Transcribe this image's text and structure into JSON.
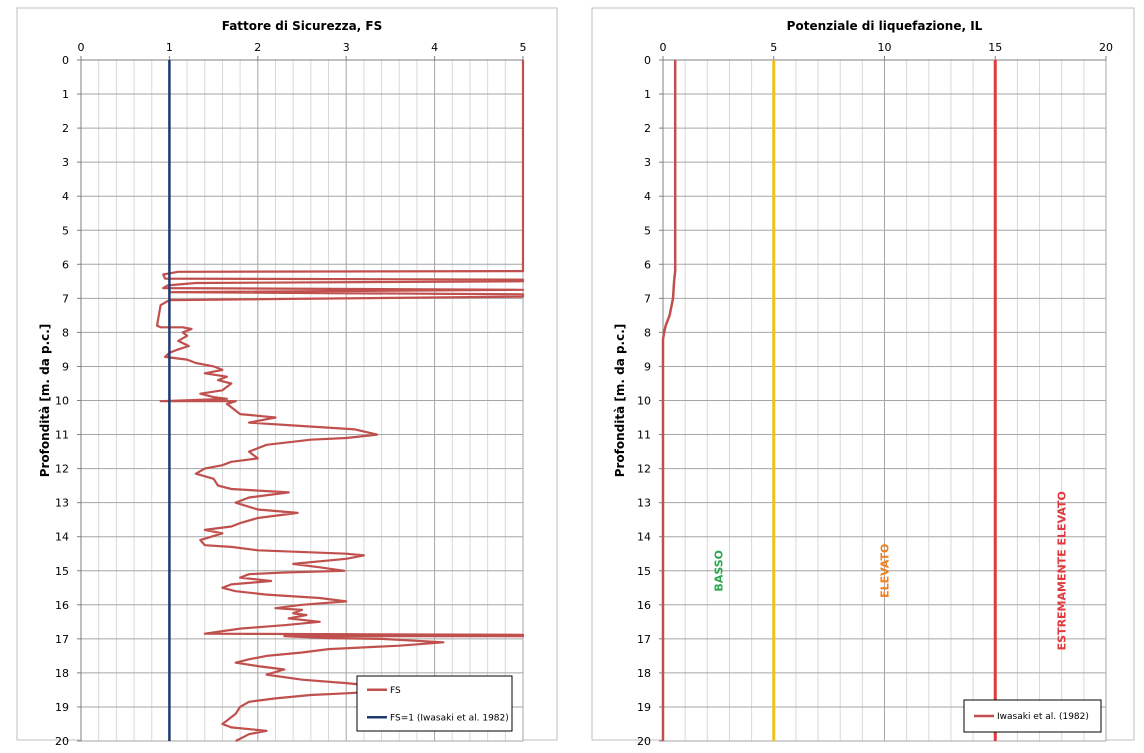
{
  "chart_data": [
    {
      "type": "line",
      "title": "Fattore di Sicurezza, FS",
      "xlabel": "",
      "ylabel": "Profondità [m. da p.c.]",
      "xlim": [
        0,
        5
      ],
      "ylim": [
        0,
        20
      ],
      "y_inverted": true,
      "x_axis_position": "top",
      "grid": true,
      "minor_grid": true,
      "x_ticks": [
        "0",
        "1",
        "2",
        "3",
        "4",
        "5"
      ],
      "y_ticks": [
        "0",
        "1",
        "2",
        "3",
        "4",
        "5",
        "6",
        "7",
        "8",
        "9",
        "10",
        "11",
        "12",
        "13",
        "14",
        "15",
        "16",
        "17",
        "18",
        "19",
        "20"
      ],
      "legend_position": "bottom-right",
      "series": [
        {
          "name": "FS",
          "color": "#c0504d",
          "points": [
            [
              5.0,
              0.0
            ],
            [
              5.0,
              6.2
            ],
            [
              1.1,
              6.22
            ],
            [
              0.93,
              6.3
            ],
            [
              0.95,
              6.42
            ],
            [
              5.0,
              6.45
            ],
            [
              5.0,
              6.5
            ],
            [
              1.3,
              6.55
            ],
            [
              0.98,
              6.62
            ],
            [
              0.93,
              6.7
            ],
            [
              5.0,
              6.75
            ],
            [
              1.0,
              6.82
            ],
            [
              5.0,
              6.88
            ],
            [
              5.0,
              6.95
            ],
            [
              1.0,
              7.05
            ],
            [
              0.9,
              7.2
            ],
            [
              0.88,
              7.5
            ],
            [
              0.86,
              7.8
            ],
            [
              0.9,
              7.85
            ],
            [
              1.15,
              7.85
            ],
            [
              1.25,
              7.9
            ],
            [
              1.15,
              8.0
            ],
            [
              1.2,
              8.1
            ],
            [
              1.1,
              8.25
            ],
            [
              1.22,
              8.4
            ],
            [
              1.1,
              8.5
            ],
            [
              1.0,
              8.6
            ],
            [
              0.95,
              8.72
            ],
            [
              1.2,
              8.8
            ],
            [
              1.3,
              8.9
            ],
            [
              1.5,
              9.0
            ],
            [
              1.6,
              9.1
            ],
            [
              1.4,
              9.2
            ],
            [
              1.65,
              9.3
            ],
            [
              1.55,
              9.4
            ],
            [
              1.7,
              9.5
            ],
            [
              1.6,
              9.7
            ],
            [
              1.35,
              9.8
            ],
            [
              1.5,
              9.9
            ],
            [
              1.65,
              9.95
            ],
            [
              0.9,
              10.02
            ],
            [
              1.75,
              10.02
            ],
            [
              1.65,
              10.1
            ],
            [
              1.7,
              10.2
            ],
            [
              1.8,
              10.4
            ],
            [
              2.2,
              10.5
            ],
            [
              1.9,
              10.65
            ],
            [
              2.5,
              10.75
            ],
            [
              3.1,
              10.85
            ],
            [
              3.35,
              11.0
            ],
            [
              3.0,
              11.1
            ],
            [
              2.6,
              11.15
            ],
            [
              2.1,
              11.3
            ],
            [
              1.9,
              11.5
            ],
            [
              2.0,
              11.7
            ],
            [
              1.7,
              11.8
            ],
            [
              1.6,
              11.9
            ],
            [
              1.4,
              12.0
            ],
            [
              1.3,
              12.15
            ],
            [
              1.5,
              12.3
            ],
            [
              1.55,
              12.5
            ],
            [
              1.7,
              12.6
            ],
            [
              2.35,
              12.7
            ],
            [
              1.9,
              12.85
            ],
            [
              1.75,
              13.0
            ],
            [
              2.0,
              13.2
            ],
            [
              2.45,
              13.3
            ],
            [
              2.0,
              13.45
            ],
            [
              1.8,
              13.6
            ],
            [
              1.7,
              13.7
            ],
            [
              1.4,
              13.8
            ],
            [
              1.6,
              13.9
            ],
            [
              1.35,
              14.1
            ],
            [
              1.4,
              14.25
            ],
            [
              1.7,
              14.3
            ],
            [
              2.0,
              14.4
            ],
            [
              3.0,
              14.5
            ],
            [
              3.2,
              14.55
            ],
            [
              3.0,
              14.65
            ],
            [
              2.4,
              14.8
            ],
            [
              2.7,
              14.9
            ],
            [
              2.98,
              15.0
            ],
            [
              2.3,
              15.05
            ],
            [
              1.9,
              15.1
            ],
            [
              1.8,
              15.2
            ],
            [
              2.15,
              15.3
            ],
            [
              1.7,
              15.4
            ],
            [
              1.6,
              15.5
            ],
            [
              1.75,
              15.6
            ],
            [
              2.1,
              15.7
            ],
            [
              2.7,
              15.8
            ],
            [
              3.0,
              15.9
            ],
            [
              2.5,
              16.0
            ],
            [
              2.2,
              16.1
            ],
            [
              2.5,
              16.15
            ],
            [
              2.4,
              16.25
            ],
            [
              2.55,
              16.3
            ],
            [
              2.35,
              16.4
            ],
            [
              2.7,
              16.5
            ],
            [
              2.3,
              16.6
            ],
            [
              1.8,
              16.7
            ],
            [
              1.4,
              16.85
            ],
            [
              5.0,
              16.88
            ],
            [
              5.0,
              16.92
            ],
            [
              2.3,
              16.92
            ],
            [
              2.8,
              16.98
            ],
            [
              3.4,
              17.0
            ],
            [
              4.1,
              17.1
            ],
            [
              3.6,
              17.2
            ],
            [
              2.8,
              17.3
            ],
            [
              2.5,
              17.4
            ],
            [
              2.1,
              17.5
            ],
            [
              1.9,
              17.6
            ],
            [
              1.75,
              17.7
            ],
            [
              2.0,
              17.8
            ],
            [
              2.3,
              17.9
            ],
            [
              2.1,
              18.05
            ],
            [
              2.5,
              18.2
            ],
            [
              3.0,
              18.3
            ],
            [
              3.4,
              18.4
            ],
            [
              3.7,
              18.5
            ],
            [
              3.0,
              18.6
            ],
            [
              2.6,
              18.65
            ],
            [
              2.2,
              18.75
            ],
            [
              1.9,
              18.85
            ],
            [
              1.8,
              19.0
            ],
            [
              1.75,
              19.2
            ],
            [
              1.65,
              19.4
            ],
            [
              1.6,
              19.5
            ],
            [
              1.7,
              19.6
            ],
            [
              2.1,
              19.7
            ],
            [
              1.9,
              19.8
            ],
            [
              1.75,
              20.0
            ]
          ]
        },
        {
          "name": "FS=1 (Iwasaki et al. 1982)",
          "color": "#1f3a6e",
          "points": [
            [
              1.0,
              0.0
            ],
            [
              1.0,
              20.0
            ]
          ]
        }
      ]
    },
    {
      "type": "line",
      "title": "Potenziale di liquefazione, IL",
      "xlabel": "",
      "ylabel": "Profondità [m. da p.c.]",
      "xlim": [
        0,
        20
      ],
      "ylim": [
        0,
        20
      ],
      "y_inverted": true,
      "x_axis_position": "top",
      "grid": true,
      "minor_grid": true,
      "x_ticks": [
        "0",
        "5",
        "10",
        "15",
        "20"
      ],
      "y_ticks": [
        "0",
        "1",
        "2",
        "3",
        "4",
        "5",
        "6",
        "7",
        "8",
        "9",
        "10",
        "11",
        "12",
        "13",
        "14",
        "15",
        "16",
        "17",
        "18",
        "19",
        "20"
      ],
      "legend_position": "bottom-right",
      "series": [
        {
          "name": "Iwasaki et al. (1982)",
          "color": "#c0504d",
          "points": [
            [
              0.55,
              0.0
            ],
            [
              0.55,
              6.2
            ],
            [
              0.5,
              6.5
            ],
            [
              0.45,
              7.0
            ],
            [
              0.3,
              7.5
            ],
            [
              0.12,
              7.8
            ],
            [
              0.05,
              8.0
            ],
            [
              0.0,
              8.2
            ],
            [
              0.0,
              20.0
            ]
          ]
        }
      ],
      "threshold_lines": [
        {
          "x": 5,
          "color": "#f0c020"
        },
        {
          "x": 15,
          "color": "#e0393e"
        }
      ],
      "zone_labels": [
        {
          "text": "BASSO",
          "x": 2.5,
          "y": 15.0,
          "color": "#2ea84f"
        },
        {
          "text": "ELEVATO",
          "x": 10.0,
          "y": 15.0,
          "color": "#f07f1e"
        },
        {
          "text": "ESTREMAMENTE ELEVATO",
          "x": 18.0,
          "y": 15.0,
          "color": "#e0393e"
        }
      ]
    }
  ]
}
